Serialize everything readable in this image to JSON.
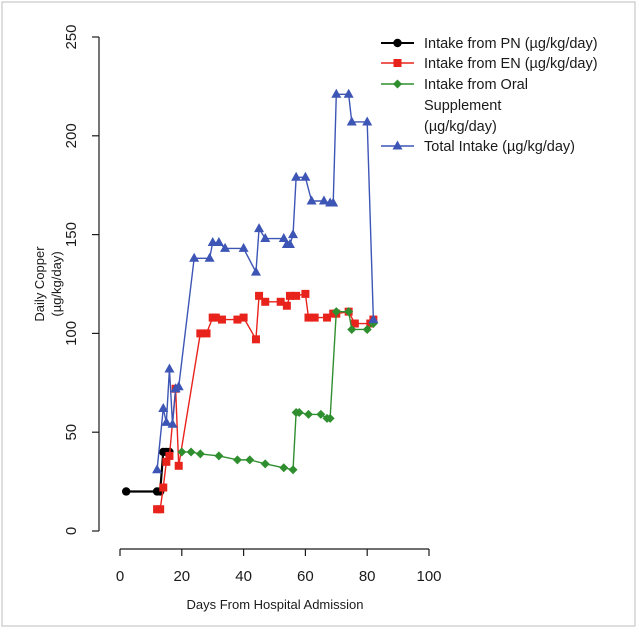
{
  "chart_data": {
    "type": "line",
    "xlabel": "Days From Hospital Admission",
    "ylabel_lines": [
      "Daily Copper",
      "(µg/kg/day)"
    ],
    "xlim": [
      0,
      100
    ],
    "ylim": [
      0,
      250
    ],
    "x_ticks": [
      "0",
      "20",
      "40",
      "60",
      "80",
      "100"
    ],
    "y_ticks": [
      "0",
      "50",
      "100",
      "150",
      "200",
      "250"
    ],
    "grid": false,
    "legend_position": "top-right",
    "series": [
      {
        "name": "Intake from PN (µg/kg/day)",
        "legend_lines": [
          "Intake from PN (µg/kg/day)"
        ],
        "color": "#000000",
        "marker": "circle",
        "x": [
          2,
          12,
          13,
          14,
          15,
          16
        ],
        "y": [
          20,
          20,
          20,
          40,
          40,
          40
        ]
      },
      {
        "name": "Intake from EN (µg/kg/day)",
        "legend_lines": [
          "Intake from EN (µg/kg/day)"
        ],
        "color": "#e8231c",
        "marker": "square",
        "x": [
          12,
          13,
          14,
          15,
          16,
          18,
          19,
          26,
          28,
          30,
          31,
          33,
          38,
          40,
          44,
          45,
          47,
          52,
          54,
          55,
          57,
          60,
          61,
          63,
          67,
          69,
          70,
          74,
          76,
          81,
          82
        ],
        "y": [
          11,
          11,
          22,
          35,
          38,
          72,
          33,
          100,
          100,
          108,
          108,
          107,
          107,
          108,
          97,
          119,
          116,
          116,
          114,
          119,
          119,
          120,
          108,
          108,
          108,
          110,
          110,
          111,
          105,
          105,
          107
        ]
      },
      {
        "name": "Intake from Oral Supplement (µg/kg/day)",
        "legend_lines": [
          "Intake from Oral",
          "Supplement",
          "(µg/kg/day)"
        ],
        "color": "#2f8f2f",
        "marker": "diamond",
        "x": [
          20,
          23,
          26,
          32,
          38,
          42,
          47,
          53,
          56,
          57,
          58,
          61,
          65,
          67,
          68,
          70,
          74,
          75,
          80,
          82
        ],
        "y": [
          40,
          40,
          39,
          38,
          36,
          36,
          34,
          32,
          31,
          60,
          60,
          59,
          59,
          57,
          57,
          111,
          111,
          102,
          102,
          105
        ]
      },
      {
        "name": "Total Intake (µg/kg/day)",
        "legend_lines": [
          "Total Intake (µg/kg/day)"
        ],
        "color": "#3d55b5",
        "marker": "triangle",
        "x": [
          12,
          14,
          15,
          16,
          17,
          18,
          19,
          24,
          29,
          30,
          32,
          34,
          40,
          44,
          45,
          47,
          53,
          54,
          55,
          56,
          57,
          60,
          62,
          66,
          68,
          69,
          70,
          74,
          75,
          80,
          82
        ],
        "y": [
          31,
          62,
          55,
          82,
          54,
          72,
          73,
          138,
          138,
          146,
          146,
          143,
          143,
          131,
          153,
          148,
          148,
          145,
          145,
          150,
          179,
          179,
          167,
          167,
          166,
          166,
          221,
          221,
          207,
          207,
          107
        ]
      }
    ]
  }
}
